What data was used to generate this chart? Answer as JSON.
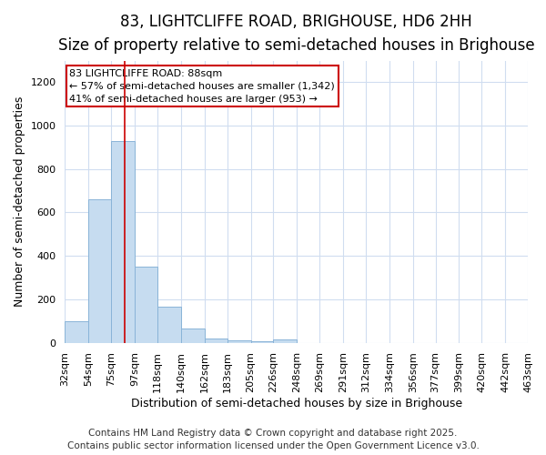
{
  "title_line1": "83, LIGHTCLIFFE ROAD, BRIGHOUSE, HD6 2HH",
  "title_line2": "Size of property relative to semi-detached houses in Brighouse",
  "xlabel": "Distribution of semi-detached houses by size in Brighouse",
  "ylabel": "Number of semi-detached properties",
  "bar_color": "#c6dcf0",
  "bar_edge_color": "#8ab4d8",
  "bin_edges": [
    32,
    54,
    75,
    97,
    118,
    140,
    162,
    183,
    205,
    226,
    248,
    269,
    291,
    312,
    334,
    356,
    377,
    399,
    420,
    442,
    463
  ],
  "bar_heights": [
    100,
    660,
    930,
    350,
    165,
    65,
    20,
    10,
    5,
    14,
    0,
    0,
    0,
    0,
    0,
    0,
    0,
    0,
    0,
    0
  ],
  "tick_labels": [
    "32sqm",
    "54sqm",
    "75sqm",
    "97sqm",
    "118sqm",
    "140sqm",
    "162sqm",
    "183sqm",
    "205sqm",
    "226sqm",
    "248sqm",
    "269sqm",
    "291sqm",
    "312sqm",
    "334sqm",
    "356sqm",
    "377sqm",
    "399sqm",
    "420sqm",
    "442sqm",
    "463sqm"
  ],
  "property_size": 88,
  "property_label": "83 LIGHTCLIFFE ROAD: 88sqm",
  "pct_smaller": "57%",
  "pct_smaller_n": "1,342",
  "pct_larger": "41%",
  "pct_larger_n": "953",
  "vline_color": "#cc0000",
  "annotation_box_color": "#cc0000",
  "ylim": [
    0,
    1300
  ],
  "yticks": [
    0,
    200,
    400,
    600,
    800,
    1000,
    1200
  ],
  "footnote_line1": "Contains HM Land Registry data © Crown copyright and database right 2025.",
  "footnote_line2": "Contains public sector information licensed under the Open Government Licence v3.0.",
  "bg_color": "#ffffff",
  "plot_bg_color": "#ffffff",
  "grid_color": "#d0ddf0",
  "title_fontsize": 12,
  "subtitle_fontsize": 10,
  "axis_label_fontsize": 9,
  "tick_fontsize": 8,
  "footnote_fontsize": 7.5
}
